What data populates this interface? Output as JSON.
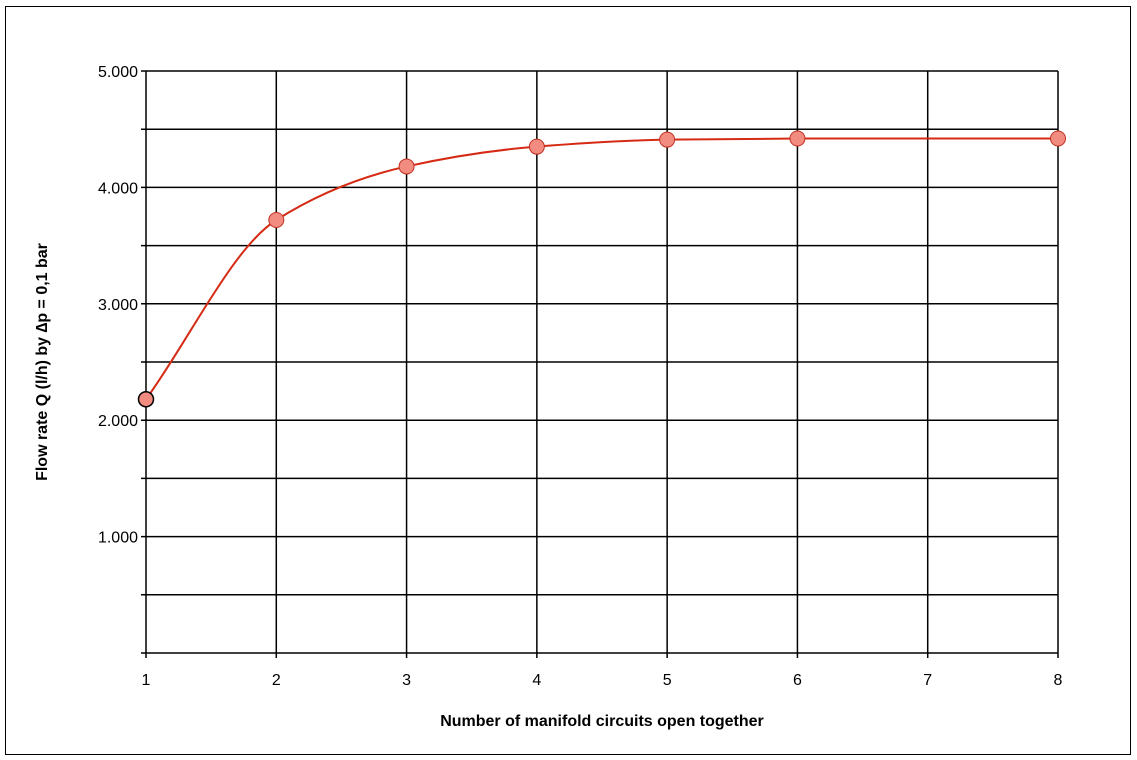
{
  "chart_data": {
    "type": "line",
    "title": "",
    "xlabel": "Number of manifold circuits open together",
    "ylabel": "Flow rate Q (l/h) by ∆p = 0,1 bar",
    "x_ticks": [
      1,
      2,
      3,
      4,
      5,
      6,
      7,
      8
    ],
    "y_ticks": [
      {
        "value": 1000,
        "label": "1.000"
      },
      {
        "value": 2000,
        "label": "2.000"
      },
      {
        "value": 3000,
        "label": "3.000"
      },
      {
        "value": 4000,
        "label": "4.000"
      },
      {
        "value": 5000,
        "label": "5.000"
      }
    ],
    "y_minor_grid": [
      500,
      1500,
      2500,
      3500,
      4500
    ],
    "xlim": [
      1,
      8
    ],
    "ylim": [
      0,
      5000
    ],
    "grid": true,
    "series": [
      {
        "x": [
          1,
          2,
          3,
          4,
          5,
          6,
          8
        ],
        "y": [
          2180,
          3720,
          4180,
          4350,
          4410,
          4420,
          4420
        ],
        "line_color": "#d52a14",
        "marker_fill": "#f28b80",
        "marker_stroke": "#c03020"
      }
    ]
  }
}
